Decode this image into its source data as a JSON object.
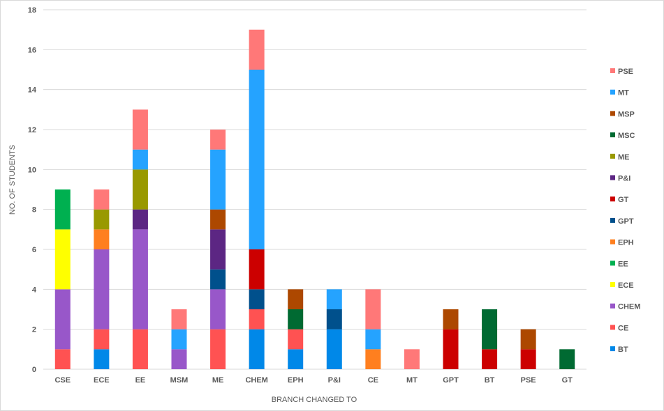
{
  "chart_data": {
    "type": "bar",
    "stacked": true,
    "title": "",
    "xlabel": "BRANCH CHANGED TO",
    "ylabel": "NO. OF STUDENTS",
    "ylim": [
      0,
      18
    ],
    "yticks": [
      0,
      2,
      4,
      6,
      8,
      10,
      12,
      14,
      16,
      18
    ],
    "grid": true,
    "legend_position": "right",
    "categories": [
      "CSE",
      "ECE",
      "EE",
      "MSM",
      "ME",
      "CHEM",
      "EPH",
      "P&I",
      "CE",
      "MT",
      "GPT",
      "BT",
      "PSE",
      "GT"
    ],
    "series": [
      {
        "name": "BT",
        "color": "#0088e8",
        "values": [
          0,
          1,
          0,
          0,
          0,
          2,
          1,
          2,
          0,
          0,
          0,
          0,
          0,
          0
        ]
      },
      {
        "name": "CE",
        "color": "#ff5252",
        "values": [
          1,
          1,
          2,
          0,
          2,
          1,
          1,
          0,
          0,
          0,
          0,
          0,
          0,
          0
        ]
      },
      {
        "name": "CHEM",
        "color": "#9857c9",
        "values": [
          3,
          4,
          5,
          1,
          2,
          0,
          0,
          0,
          0,
          0,
          0,
          0,
          0,
          0
        ]
      },
      {
        "name": "ECE",
        "color": "#ffff00",
        "values": [
          3,
          0,
          0,
          0,
          0,
          0,
          0,
          0,
          0,
          0,
          0,
          0,
          0,
          0
        ]
      },
      {
        "name": "EE",
        "color": "#00b050",
        "values": [
          2,
          0,
          0,
          0,
          0,
          0,
          0,
          0,
          0,
          0,
          0,
          0,
          0,
          0
        ]
      },
      {
        "name": "EPH",
        "color": "#ff7f1f",
        "values": [
          0,
          1,
          0,
          0,
          0,
          0,
          0,
          0,
          1,
          0,
          0,
          0,
          0,
          0
        ]
      },
      {
        "name": "GPT",
        "color": "#00508c",
        "values": [
          0,
          0,
          0,
          0,
          1,
          1,
          0,
          1,
          0,
          0,
          0,
          0,
          0,
          0
        ]
      },
      {
        "name": "GT",
        "color": "#cc0000",
        "values": [
          0,
          0,
          0,
          0,
          0,
          2,
          0,
          0,
          0,
          0,
          2,
          1,
          1,
          0
        ]
      },
      {
        "name": "P&I",
        "color": "#5c2683",
        "values": [
          0,
          0,
          1,
          0,
          2,
          0,
          0,
          0,
          0,
          0,
          0,
          0,
          0,
          0
        ]
      },
      {
        "name": "ME",
        "color": "#999900",
        "values": [
          0,
          1,
          2,
          0,
          0,
          0,
          0,
          0,
          0,
          0,
          0,
          0,
          0,
          0
        ]
      },
      {
        "name": "MSC",
        "color": "#006a32",
        "values": [
          0,
          0,
          0,
          0,
          0,
          0,
          1,
          0,
          0,
          0,
          0,
          2,
          0,
          1
        ]
      },
      {
        "name": "MSP",
        "color": "#ad4800",
        "values": [
          0,
          0,
          0,
          0,
          1,
          0,
          1,
          0,
          0,
          0,
          1,
          0,
          1,
          0
        ]
      },
      {
        "name": "MT",
        "color": "#25a3ff",
        "values": [
          0,
          0,
          1,
          1,
          3,
          9,
          0,
          1,
          1,
          0,
          0,
          0,
          0,
          0
        ]
      },
      {
        "name": "PSE",
        "color": "#ff7878",
        "values": [
          0,
          1,
          2,
          1,
          1,
          2,
          0,
          0,
          2,
          1,
          0,
          0,
          0,
          0
        ]
      }
    ]
  }
}
